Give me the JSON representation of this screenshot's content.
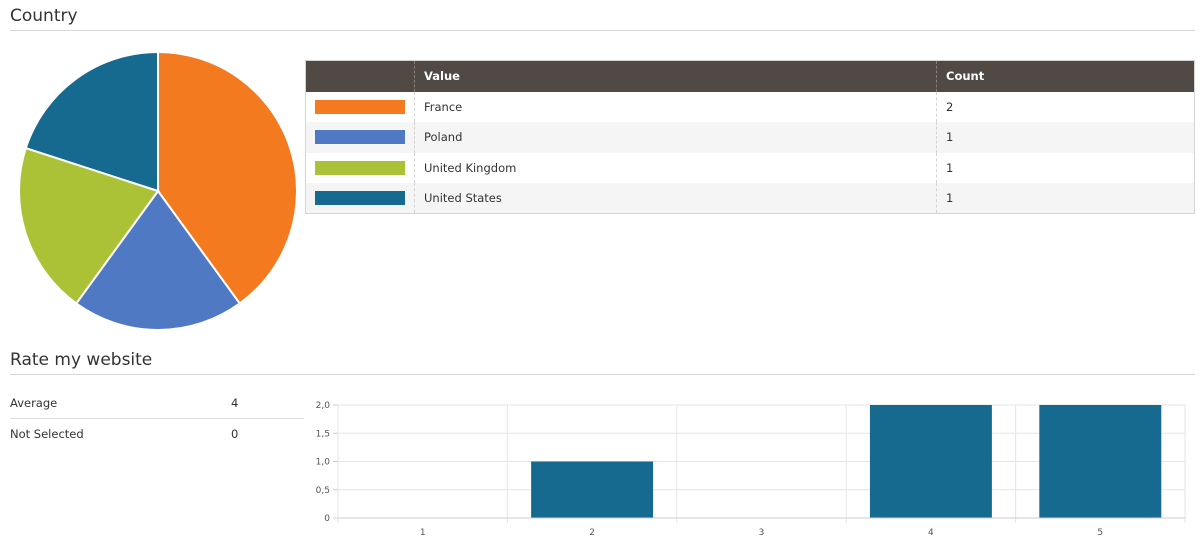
{
  "sections": {
    "country_title": "Country",
    "rate_title": "Rate my website"
  },
  "country_table": {
    "headers": [
      "",
      "Value",
      "Count"
    ],
    "rows": [
      {
        "color": "#f47a1f",
        "value": "France",
        "count": "2"
      },
      {
        "color": "#5079c4",
        "value": "Poland",
        "count": "1"
      },
      {
        "color": "#acc236",
        "value": "United Kingdom",
        "count": "1"
      },
      {
        "color": "#166a8f",
        "value": "United States",
        "count": "1"
      }
    ]
  },
  "rate_stats": [
    {
      "label": "Average",
      "value": "4"
    },
    {
      "label": "Not Selected",
      "value": "0"
    }
  ],
  "chart_data": [
    {
      "type": "pie",
      "labels": [
        "France",
        "Poland",
        "United Kingdom",
        "United States"
      ],
      "values": [
        2,
        1,
        1,
        1
      ],
      "colors": [
        "#f47a1f",
        "#5079c4",
        "#acc236",
        "#166a8f"
      ]
    },
    {
      "type": "bar",
      "categories": [
        "1",
        "2",
        "3",
        "4",
        "5"
      ],
      "values": [
        0,
        1,
        0,
        2,
        2
      ],
      "ylim": [
        0,
        2
      ],
      "yticks": [
        "0",
        "0,5",
        "1,0",
        "1,5",
        "2,0"
      ],
      "ytick_values": [
        0,
        0.5,
        1,
        1.5,
        2
      ],
      "color": "#166a8f",
      "grid": true
    }
  ]
}
